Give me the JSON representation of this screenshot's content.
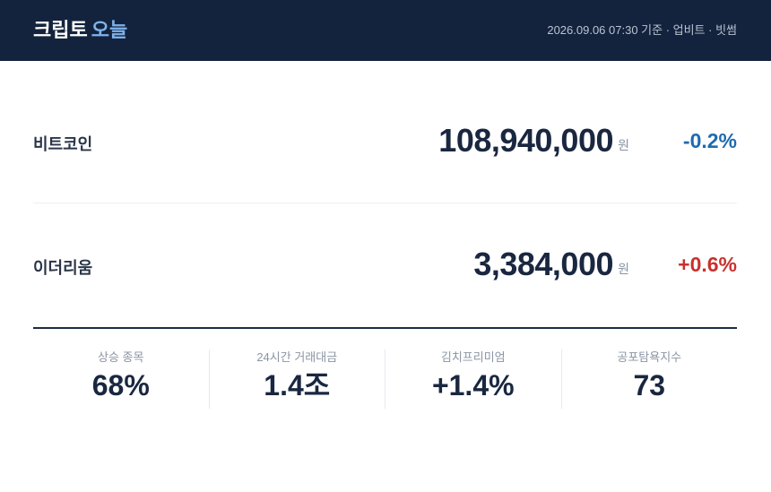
{
  "header": {
    "title": "크립토",
    "title_accent": "오늘",
    "meta": "2026.09.06 07:30 기준 · 업비트 · 빗썸"
  },
  "prices": [
    {
      "name": "비트코인",
      "price": "108,940,000",
      "unit": "원",
      "change": "-0.2%"
    },
    {
      "name": "이더리움",
      "price": "3,384,000",
      "unit": "원",
      "change": "+0.6%"
    }
  ],
  "stats": [
    {
      "label": "상승 종목",
      "value": "68%"
    },
    {
      "label": "24시간 거래대금",
      "value": "1.4조"
    },
    {
      "label": "김치프리미엄",
      "value": "+1.4%"
    },
    {
      "label": "공포탐욕지수",
      "value": "73"
    }
  ]
}
